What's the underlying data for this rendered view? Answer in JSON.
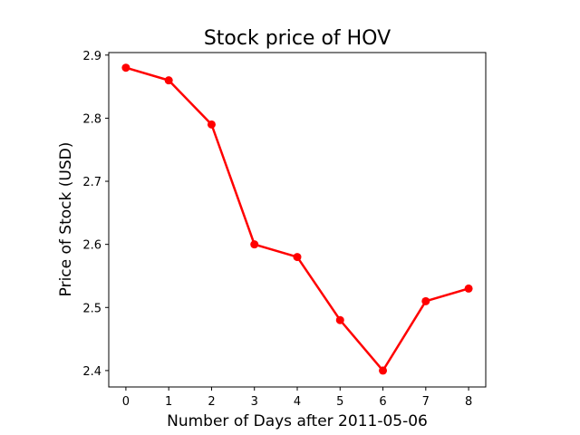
{
  "chart_data": {
    "type": "line",
    "title": "Stock price of HOV",
    "xlabel": "Number of Days after 2011-05-06",
    "ylabel": "Price of Stock (USD)",
    "x": [
      0,
      1,
      2,
      3,
      4,
      5,
      6,
      7,
      8
    ],
    "x_tick_labels": [
      "0",
      "1",
      "2",
      "3",
      "4",
      "5",
      "6",
      "7",
      "8"
    ],
    "y_ticks": [
      2.4,
      2.5,
      2.6,
      2.7,
      2.8,
      2.9
    ],
    "y_tick_labels": [
      "2.4",
      "2.5",
      "2.6",
      "2.7",
      "2.8",
      "2.9"
    ],
    "series": [
      {
        "values": [
          2.88,
          2.86,
          2.79,
          2.6,
          2.58,
          2.48,
          2.4,
          2.51,
          2.53
        ],
        "color": "#ff0000"
      }
    ],
    "xlim": [
      -0.4,
      8.4
    ],
    "ylim": [
      2.374,
      2.904
    ],
    "grid": false,
    "markers": true
  }
}
